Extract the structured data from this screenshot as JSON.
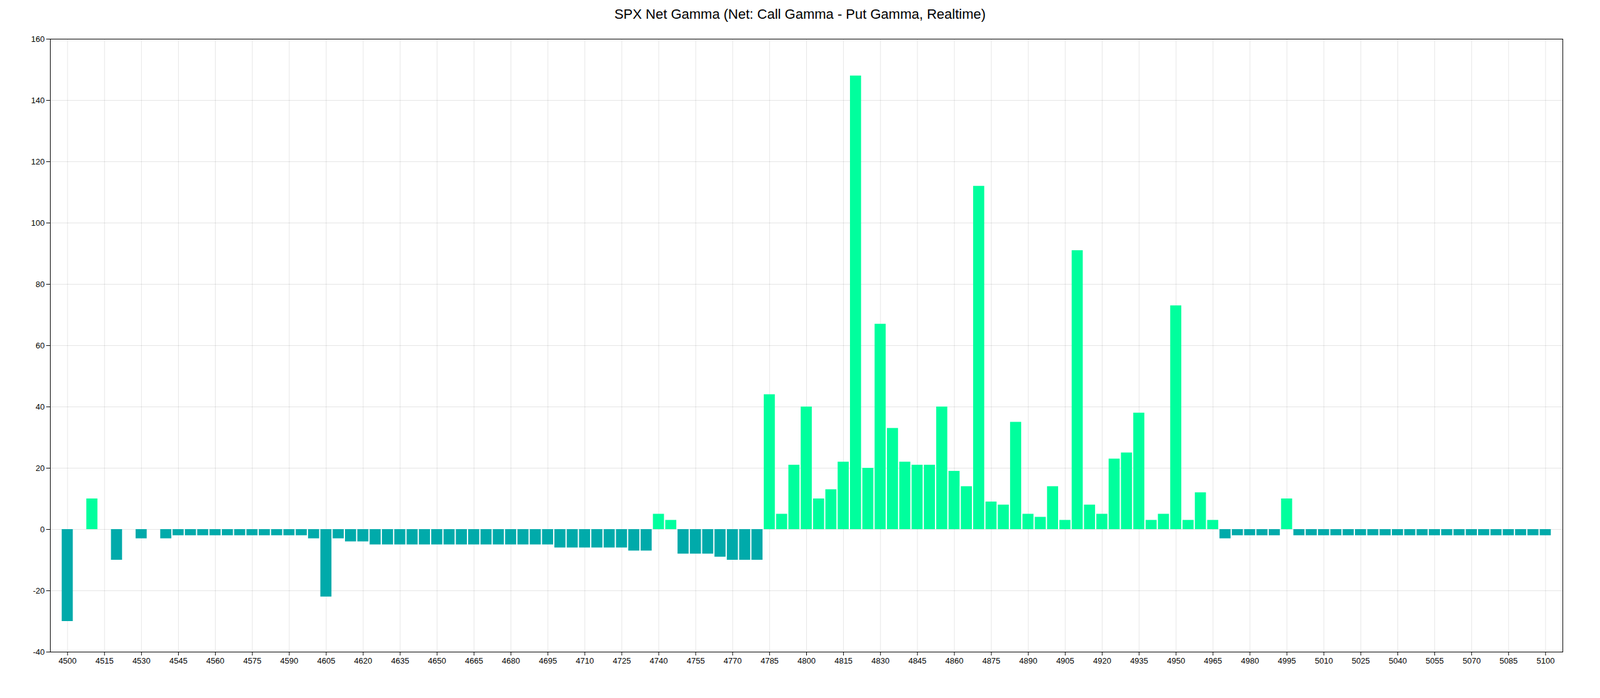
{
  "chart_data": {
    "type": "bar",
    "title": "SPX Net Gamma (Net: Call Gamma - Put Gamma, Realtime)",
    "x": [
      4500,
      4510,
      4520,
      4530,
      4540,
      4545,
      4550,
      4555,
      4560,
      4565,
      4570,
      4575,
      4580,
      4585,
      4590,
      4595,
      4600,
      4605,
      4610,
      4615,
      4620,
      4625,
      4630,
      4635,
      4640,
      4645,
      4650,
      4655,
      4660,
      4665,
      4670,
      4675,
      4680,
      4685,
      4690,
      4695,
      4700,
      4705,
      4710,
      4715,
      4720,
      4725,
      4730,
      4735,
      4740,
      4745,
      4750,
      4755,
      4760,
      4765,
      4770,
      4775,
      4780,
      4785,
      4790,
      4795,
      4800,
      4805,
      4810,
      4815,
      4820,
      4825,
      4830,
      4835,
      4840,
      4845,
      4850,
      4855,
      4860,
      4865,
      4870,
      4875,
      4880,
      4885,
      4890,
      4895,
      4900,
      4905,
      4910,
      4915,
      4920,
      4925,
      4930,
      4935,
      4940,
      4945,
      4950,
      4955,
      4960,
      4965,
      4970,
      4975,
      4980,
      4985,
      4990,
      4995,
      5000,
      5005,
      5010,
      5015,
      5020,
      5025,
      5030,
      5035,
      5040,
      5045,
      5050,
      5055,
      5060,
      5065,
      5070,
      5075,
      5080,
      5085,
      5090,
      5095,
      5100
    ],
    "values": [
      -30,
      10,
      -10,
      -3,
      -3,
      -2,
      -2,
      -2,
      -2,
      -2,
      -2,
      -2,
      -2,
      -2,
      -2,
      -2,
      -3,
      -22,
      -3,
      -4,
      -4,
      -5,
      -5,
      -5,
      -5,
      -5,
      -5,
      -5,
      -5,
      -5,
      -5,
      -5,
      -5,
      -5,
      -5,
      -5,
      -6,
      -6,
      -6,
      -6,
      -6,
      -6,
      -7,
      -7,
      5,
      3,
      -8,
      -8,
      -8,
      -9,
      -10,
      -10,
      -10,
      44,
      5,
      21,
      40,
      10,
      13,
      22,
      148,
      20,
      67,
      33,
      22,
      21,
      21,
      40,
      19,
      14,
      112,
      9,
      8,
      35,
      5,
      4,
      14,
      3,
      91,
      8,
      5,
      23,
      25,
      38,
      3,
      5,
      73,
      3,
      12,
      3,
      -3,
      -2,
      -2,
      -2,
      -2,
      10,
      -2,
      -2,
      -2,
      -2,
      -2,
      -2,
      -2,
      -2,
      -2,
      -2,
      -2,
      -2,
      -2,
      -2,
      -2,
      -2,
      -2,
      -2,
      -2,
      -2,
      -2
    ],
    "colors": [
      "#00aaaa",
      "#00ff9d",
      "#00aaaa",
      "#00aaaa",
      "#00aaaa",
      "#00aaaa",
      "#00aaaa",
      "#00aaaa",
      "#00aaaa",
      "#00aaaa",
      "#00aaaa",
      "#00aaaa",
      "#00aaaa",
      "#00aaaa",
      "#00aaaa",
      "#00aaaa",
      "#00aaaa",
      "#00aaaa",
      "#00aaaa",
      "#00aaaa",
      "#00aaaa",
      "#00aaaa",
      "#00aaaa",
      "#00aaaa",
      "#00aaaa",
      "#00aaaa",
      "#00aaaa",
      "#00aaaa",
      "#00aaaa",
      "#00aaaa",
      "#00aaaa",
      "#00aaaa",
      "#00aaaa",
      "#00aaaa",
      "#00aaaa",
      "#00aaaa",
      "#00aaaa",
      "#00aaaa",
      "#00aaaa",
      "#00aaaa",
      "#00aaaa",
      "#00aaaa",
      "#00aaaa",
      "#00aaaa",
      "#00ff9d",
      "#00ff9d",
      "#00aaaa",
      "#00aaaa",
      "#00aaaa",
      "#00aaaa",
      "#00aaaa",
      "#00aaaa",
      "#00aaaa",
      "#00ff9d",
      "#00ff9d",
      "#00ff9d",
      "#00ff9d",
      "#00ff9d",
      "#00ff9d",
      "#00ff9d",
      "#00ff9d",
      "#00ff9d",
      "#00ff9d",
      "#00ff9d",
      "#00ff9d",
      "#00ff9d",
      "#00ff9d",
      "#00ff9d",
      "#00ff9d",
      "#00ff9d",
      "#00ff9d",
      "#00ff9d",
      "#00ff9d",
      "#00ff9d",
      "#00ff9d",
      "#00ff9d",
      "#00ff9d",
      "#00ff9d",
      "#00ff9d",
      "#00ff9d",
      "#00ff9d",
      "#00ff9d",
      "#00ff9d",
      "#00ff9d",
      "#00ff9d",
      "#00ff9d",
      "#00ff9d",
      "#00ff9d",
      "#00ff9d",
      "#00ff9d",
      "#00aaaa",
      "#00aaaa",
      "#00aaaa",
      "#00aaaa",
      "#00aaaa",
      "#00ff9d",
      "#00aaaa",
      "#00aaaa",
      "#00aaaa",
      "#00aaaa",
      "#00aaaa",
      "#00aaaa",
      "#00aaaa",
      "#00aaaa",
      "#00aaaa",
      "#00aaaa",
      "#00aaaa",
      "#00aaaa",
      "#00aaaa",
      "#00aaaa",
      "#00aaaa",
      "#00aaaa",
      "#00aaaa",
      "#00aaaa",
      "#00aaaa",
      "#00aaaa",
      "#00aaaa"
    ],
    "xlim": [
      4493,
      5107
    ],
    "xticks": [
      4500,
      4515,
      4530,
      4545,
      4560,
      4575,
      4590,
      4605,
      4620,
      4635,
      4650,
      4665,
      4680,
      4695,
      4710,
      4725,
      4740,
      4755,
      4770,
      4785,
      4800,
      4815,
      4830,
      4845,
      4860,
      4875,
      4890,
      4905,
      4920,
      4935,
      4950,
      4965,
      4980,
      4995,
      5010,
      5025,
      5040,
      5055,
      5070,
      5085,
      5100
    ],
    "ylim": [
      -40,
      160
    ],
    "yticks": [
      -40,
      -20,
      0,
      20,
      40,
      60,
      80,
      100,
      120,
      140,
      160
    ],
    "grid": true
  }
}
